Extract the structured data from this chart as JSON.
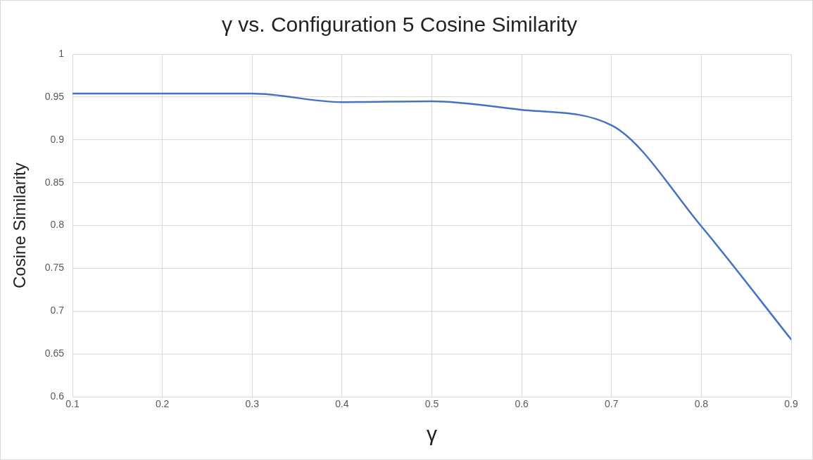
{
  "chart_data": {
    "type": "line",
    "title": "γ vs. Configuration 5 Cosine Similarity",
    "xlabel": "γ",
    "ylabel": "Cosine Similarity",
    "x": [
      0.1,
      0.2,
      0.3,
      0.4,
      0.5,
      0.6,
      0.7,
      0.8,
      0.9
    ],
    "series": [
      {
        "color": "#4472c4",
        "values": [
          0.954,
          0.954,
          0.954,
          0.944,
          0.945,
          0.935,
          0.917,
          0.799,
          0.667
        ]
      }
    ],
    "xlim": [
      0.1,
      0.9
    ],
    "xticks": [
      0.1,
      0.2,
      0.3,
      0.4,
      0.5,
      0.6,
      0.7,
      0.8,
      0.9
    ],
    "ylim": [
      0.6,
      1
    ],
    "yticks": [
      0.6,
      0.65,
      0.7,
      0.75,
      0.8,
      0.85,
      0.9,
      0.95,
      1
    ],
    "grid": true,
    "legend": false,
    "marker": "none",
    "line_style": "solid"
  }
}
